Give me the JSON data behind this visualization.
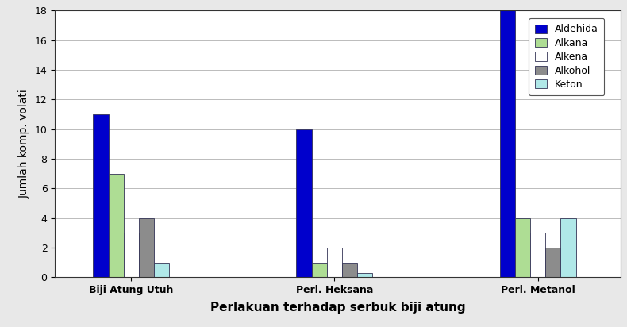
{
  "categories": [
    "Biji Atung Utuh",
    "Perl. Heksana",
    "Perl. Metanol"
  ],
  "series": [
    {
      "label": "Aldehida",
      "values": [
        11,
        10,
        18
      ],
      "color": "#0000CC"
    },
    {
      "label": "Alkana",
      "values": [
        7,
        1,
        4
      ],
      "color": "#AEDD94"
    },
    {
      "label": "Alkena",
      "values": [
        3,
        2,
        3
      ],
      "color": "#FFFFFF"
    },
    {
      "label": "Alkohol",
      "values": [
        4,
        1,
        2
      ],
      "color": "#8C8C8C"
    },
    {
      "label": "Keton",
      "values": [
        1,
        0.3,
        4
      ],
      "color": "#B0E8E8"
    }
  ],
  "ylabel": "Jumlah komp. volati",
  "xlabel": "Perlakuan terhadap serbuk biji atung",
  "ylim": [
    0,
    18
  ],
  "yticks": [
    0,
    2,
    4,
    6,
    8,
    10,
    12,
    14,
    16,
    18
  ],
  "bar_width": 0.12,
  "group_positions": [
    1.0,
    2.6,
    4.2
  ],
  "xlim": [
    0.4,
    4.85
  ],
  "edge_color": "#333355",
  "background_color": "#E8E8E8",
  "plot_bg_color": "#FFFFFF",
  "grid_color": "#BBBBBB",
  "legend_fontsize": 9,
  "axis_fontsize": 10,
  "tick_fontsize": 9,
  "ylabel_fontsize": 10,
  "xlabel_fontsize": 11
}
